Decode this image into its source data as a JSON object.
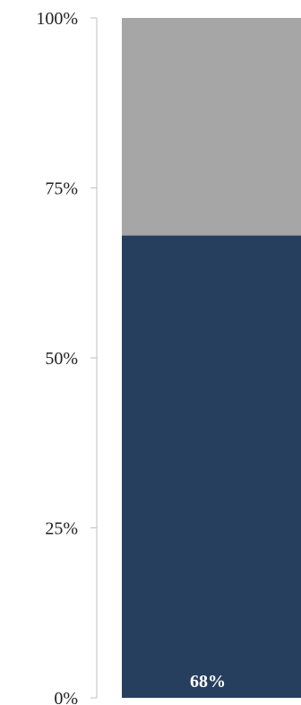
{
  "chart_data": {
    "type": "bar",
    "stacked": true,
    "categories": [
      ""
    ],
    "series": [
      {
        "values": [
          68
        ],
        "color": "#263f5f"
      },
      {
        "values": [
          32
        ],
        "color": "#a6a6a6"
      }
    ],
    "data_labels": [
      "68%",
      ""
    ],
    "y_ticks": [
      0,
      25,
      50,
      75,
      100
    ],
    "y_tick_labels": [
      "0%",
      "25%",
      "50%",
      "75%",
      "100%"
    ],
    "ylim": [
      0,
      100
    ],
    "title": "",
    "xlabel": "",
    "ylabel": "",
    "grid": false,
    "legend": "none",
    "axis_color": "#bfbfbf"
  }
}
